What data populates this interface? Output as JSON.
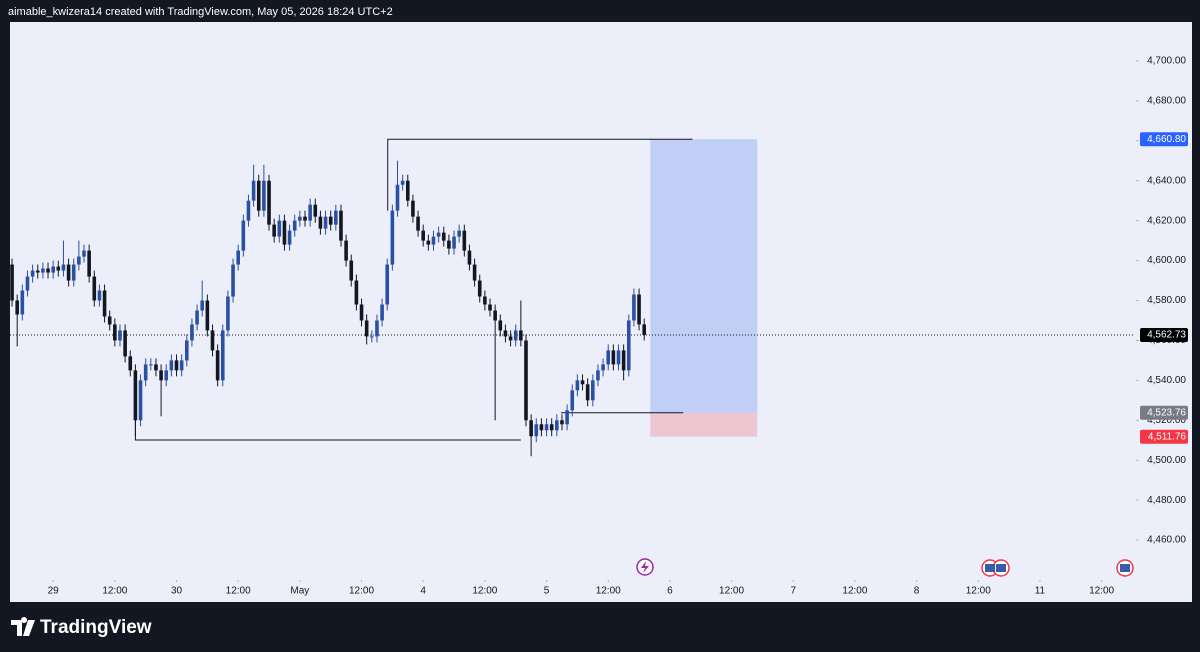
{
  "header": {
    "text": "aimable_kwizera14 created with TradingView.com, May 05, 2026 18:24 UTC+2"
  },
  "footer": {
    "logo": "TradingView"
  },
  "chart_data": {
    "type": "candlestick",
    "up_color": "#2a50a3",
    "down_color": "#131722",
    "x": [
      0,
      1,
      2,
      3,
      4,
      5,
      6,
      7,
      8,
      9,
      10,
      11,
      12,
      13,
      14,
      15,
      16,
      17,
      18,
      19,
      20,
      21,
      22,
      23,
      24,
      25,
      26,
      27,
      28,
      29,
      30,
      31,
      32,
      33,
      34,
      35,
      36,
      37,
      38,
      39,
      40,
      41,
      42,
      43,
      44,
      45,
      46,
      47,
      48,
      49,
      50,
      51,
      52,
      53,
      54,
      55,
      56,
      57,
      58,
      59,
      60,
      61,
      62,
      63,
      64,
      65,
      66,
      67,
      68,
      69,
      70,
      71,
      72,
      73,
      74,
      75,
      76,
      77,
      78,
      79,
      80,
      81,
      82,
      83,
      84,
      85,
      86,
      87,
      88,
      89,
      90,
      91,
      92,
      93,
      94,
      95,
      96,
      97,
      98,
      99,
      100,
      101,
      102,
      103,
      104,
      105,
      106,
      107,
      108,
      109,
      110,
      111,
      112,
      113,
      114,
      115,
      116,
      117,
      118,
      119,
      120,
      121,
      122,
      123
    ],
    "open": [
      4598,
      4580,
      4573,
      4585,
      4592,
      4595,
      4594,
      4596,
      4594,
      4597,
      4595,
      4598,
      4590,
      4598,
      4602,
      4605,
      4592,
      4580,
      4585,
      4572,
      4568,
      4560,
      4565,
      4552,
      4545,
      4520,
      4540,
      4548,
      4548,
      4545,
      4540,
      4545,
      4550,
      4545,
      4550,
      4560,
      4568,
      4575,
      4580,
      4565,
      4555,
      4540,
      4565,
      4582,
      4598,
      4605,
      4620,
      4630,
      4640,
      4625,
      4640,
      4618,
      4612,
      4620,
      4608,
      4615,
      4620,
      4622,
      4620,
      4628,
      4622,
      4616,
      4622,
      4618,
      4625,
      4610,
      4600,
      4590,
      4578,
      4570,
      4562,
      4562,
      4570,
      4578,
      4598,
      4625,
      4638,
      4640,
      4630,
      4622,
      4615,
      4610,
      4608,
      4612,
      4614,
      4610,
      4606,
      4612,
      4615,
      4605,
      4598,
      4590,
      4582,
      4578,
      4575,
      4570,
      4565,
      4562,
      4560,
      4565,
      4560,
      4520,
      4512,
      4518,
      4515,
      4518,
      4515,
      4520,
      4518,
      4525,
      4535,
      4540,
      4538,
      4530,
      4540,
      4545,
      4548,
      4555,
      4548,
      4555,
      4545,
      4570,
      4583,
      4568
    ],
    "high": [
      4601,
      4583,
      4588,
      4595,
      4598,
      4598,
      4599,
      4599,
      4600,
      4600,
      4610,
      4601,
      4601,
      4610,
      4608,
      4608,
      4595,
      4588,
      4588,
      4575,
      4571,
      4568,
      4568,
      4555,
      4548,
      4543,
      4551,
      4551,
      4551,
      4548,
      4548,
      4553,
      4553,
      4553,
      4563,
      4571,
      4578,
      4590,
      4583,
      4568,
      4558,
      4568,
      4585,
      4601,
      4608,
      4623,
      4633,
      4648,
      4643,
      4648,
      4643,
      4621,
      4623,
      4623,
      4618,
      4623,
      4625,
      4625,
      4631,
      4631,
      4625,
      4625,
      4625,
      4628,
      4628,
      4613,
      4603,
      4593,
      4581,
      4573,
      4565,
      4573,
      4581,
      4601,
      4628,
      4650,
      4643,
      4643,
      4633,
      4625,
      4618,
      4613,
      4615,
      4617,
      4617,
      4613,
      4615,
      4618,
      4618,
      4608,
      4601,
      4593,
      4585,
      4581,
      4578,
      4573,
      4568,
      4565,
      4568,
      4580,
      4563,
      4523,
      4521,
      4521,
      4521,
      4521,
      4523,
      4523,
      4528,
      4538,
      4543,
      4543,
      4541,
      4543,
      4548,
      4551,
      4558,
      4558,
      4558,
      4558,
      4573,
      4586,
      4586,
      4571
    ],
    "low": [
      4577,
      4557,
      4570,
      4582,
      4589,
      4591,
      4591,
      4591,
      4591,
      4592,
      4592,
      4587,
      4587,
      4595,
      4599,
      4589,
      4577,
      4577,
      4569,
      4565,
      4557,
      4557,
      4549,
      4542,
      4512,
      4517,
      4537,
      4545,
      4542,
      4522,
      4537,
      4542,
      4542,
      4542,
      4547,
      4557,
      4565,
      4572,
      4562,
      4552,
      4537,
      4537,
      4562,
      4579,
      4595,
      4602,
      4617,
      4627,
      4622,
      4622,
      4615,
      4609,
      4609,
      4605,
      4605,
      4612,
      4617,
      4617,
      4617,
      4619,
      4613,
      4613,
      4615,
      4615,
      4607,
      4597,
      4587,
      4575,
      4567,
      4558,
      4559,
      4559,
      4567,
      4575,
      4595,
      4622,
      4635,
      4627,
      4619,
      4612,
      4607,
      4605,
      4605,
      4609,
      4607,
      4603,
      4603,
      4609,
      4602,
      4595,
      4587,
      4579,
      4575,
      4572,
      4520,
      4562,
      4559,
      4557,
      4557,
      4557,
      4517,
      4502,
      4509,
      4512,
      4512,
      4512,
      4512,
      4515,
      4515,
      4522,
      4532,
      4535,
      4527,
      4527,
      4537,
      4542,
      4545,
      4545,
      4545,
      4540,
      4542,
      4567,
      4565,
      4560
    ],
    "close": [
      4580,
      4573,
      4585,
      4592,
      4595,
      4594,
      4596,
      4594,
      4597,
      4595,
      4598,
      4590,
      4598,
      4602,
      4605,
      4592,
      4580,
      4585,
      4572,
      4568,
      4560,
      4565,
      4552,
      4545,
      4520,
      4540,
      4548,
      4548,
      4545,
      4540,
      4545,
      4550,
      4545,
      4550,
      4560,
      4568,
      4575,
      4580,
      4565,
      4555,
      4540,
      4565,
      4582,
      4598,
      4605,
      4620,
      4630,
      4640,
      4625,
      4640,
      4618,
      4612,
      4620,
      4608,
      4615,
      4620,
      4622,
      4620,
      4628,
      4622,
      4616,
      4622,
      4618,
      4625,
      4610,
      4600,
      4590,
      4578,
      4570,
      4562,
      4562,
      4570,
      4578,
      4598,
      4625,
      4638,
      4640,
      4630,
      4622,
      4615,
      4610,
      4608,
      4612,
      4614,
      4610,
      4606,
      4612,
      4615,
      4605,
      4598,
      4590,
      4582,
      4578,
      4575,
      4570,
      4565,
      4562,
      4560,
      4565,
      4560,
      4520,
      4512,
      4518,
      4515,
      4518,
      4515,
      4520,
      4518,
      4525,
      4535,
      4540,
      4538,
      4530,
      4540,
      4545,
      4548,
      4555,
      4548,
      4555,
      4545,
      4570,
      4583,
      4568,
      4562.73
    ],
    "xlim": [
      -0.4,
      218.5
    ],
    "xticks": [
      {
        "value": 8,
        "label": "29"
      },
      {
        "value": 20,
        "label": "12:00"
      },
      {
        "value": 32,
        "label": "30"
      },
      {
        "value": 44,
        "label": "12:00"
      },
      {
        "value": 56,
        "label": "May"
      },
      {
        "value": 68,
        "label": "12:00"
      },
      {
        "value": 80,
        "label": "4"
      },
      {
        "value": 92,
        "label": "12:00"
      },
      {
        "value": 104,
        "label": "5"
      },
      {
        "value": 116,
        "label": "12:00"
      },
      {
        "value": 128,
        "label": "6"
      },
      {
        "value": 140,
        "label": "12:00"
      },
      {
        "value": 152,
        "label": "7"
      },
      {
        "value": 164,
        "label": "12:00"
      },
      {
        "value": 176,
        "label": "8"
      },
      {
        "value": 188,
        "label": "12:00"
      },
      {
        "value": 200,
        "label": "11"
      },
      {
        "value": 212,
        "label": "12:00"
      }
    ],
    "ylim": [
      4441.5,
      4719.5
    ],
    "yticks": [
      {
        "value": 4460,
        "label": "4,460.00"
      },
      {
        "value": 4480,
        "label": "4,480.00"
      },
      {
        "value": 4500,
        "label": "4,500.00"
      },
      {
        "value": 4520,
        "label": "4,520.00"
      },
      {
        "value": 4540,
        "label": "4,540.00"
      },
      {
        "value": 4560,
        "label": "4,560.00"
      },
      {
        "value": 4580,
        "label": "4,580.00"
      },
      {
        "value": 4600,
        "label": "4,600.00"
      },
      {
        "value": 4620,
        "label": "4,620.00"
      },
      {
        "value": 4640,
        "label": "4,640.00"
      },
      {
        "value": 4660,
        "label": "4,660.00"
      },
      {
        "value": 4680,
        "label": "4,680.00"
      },
      {
        "value": 4700,
        "label": "4,700.00"
      }
    ],
    "price_labels": [
      {
        "value": 4660.8,
        "label": "4,660.80",
        "color": "#2962ff"
      },
      {
        "value": 4562.73,
        "label": "4,562.73",
        "color": "#000000"
      },
      {
        "value": 4523.76,
        "label": "4,523.76",
        "color": "#787b86"
      },
      {
        "value": 4511.76,
        "label": "4,511.76",
        "color": "#f23645"
      }
    ],
    "position": {
      "x_start": 124.2,
      "x_end": 145,
      "target_color": "#c1cff7",
      "stop_color": "#eec6d2"
    },
    "drawings": [
      {
        "x": [
          73.1,
          73.1,
          132.4
        ],
        "y": [
          4625,
          4660.8,
          4660.8
        ]
      },
      {
        "x": [
          24,
          24,
          99
        ],
        "y": [
          4542.7,
          4510.1,
          4510.1
        ]
      },
      {
        "x": [
          106.8,
          130.6
        ],
        "y": [
          4523.76,
          4523.76
        ]
      }
    ]
  }
}
